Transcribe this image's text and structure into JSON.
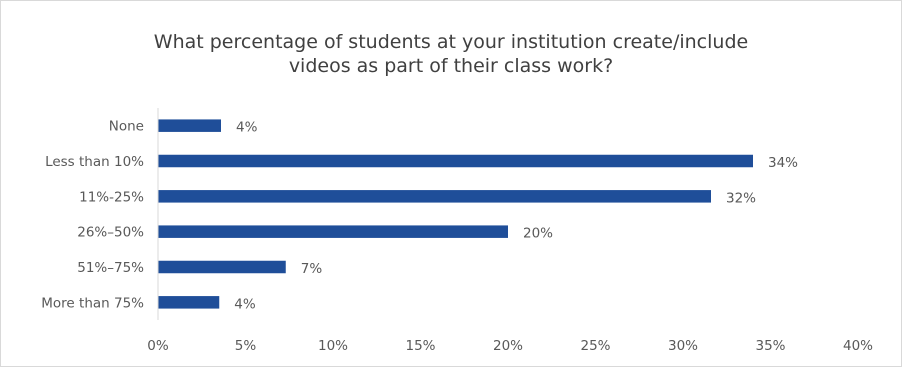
{
  "chart_data": {
    "type": "bar",
    "orientation": "horizontal",
    "title": "What percentage of students at your institution create/include videos as part of their class work?",
    "title_lines": [
      "What percentage of students at your institution create/include",
      "videos as part of their class work?"
    ],
    "categories": [
      "None",
      "Less than 10%",
      "11%-25%",
      "26%–50%",
      "51%–75%",
      "More than 75%"
    ],
    "values": [
      3.6,
      34,
      31.6,
      20,
      7.3,
      3.5
    ],
    "data_labels": [
      "4%",
      "34%",
      "32%",
      "20%",
      "7%",
      "4%"
    ],
    "xlim": [
      0,
      40
    ],
    "xticks": [
      0,
      5,
      10,
      15,
      20,
      25,
      30,
      35,
      40
    ],
    "xtick_labels": [
      "0%",
      "5%",
      "10%",
      "15%",
      "20%",
      "25%",
      "30%",
      "35%",
      "40%"
    ],
    "xlabel": "",
    "ylabel": "",
    "grid": false,
    "legend": "none",
    "bar_color": "#1f4e99"
  }
}
